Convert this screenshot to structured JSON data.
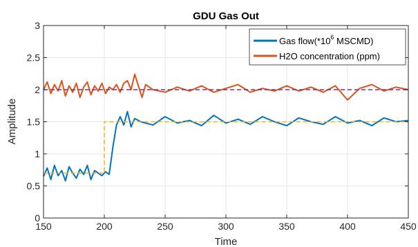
{
  "chart_data": {
    "type": "line",
    "title": "GDU Gas Out",
    "xlabel": "Time",
    "ylabel": "Amplitude",
    "xlim": [
      150,
      450
    ],
    "ylim": [
      0,
      3
    ],
    "x_ticks": [
      "150",
      "200",
      "250",
      "300",
      "350",
      "400",
      "450"
    ],
    "y_ticks": [
      "0",
      "0.5",
      "1",
      "1.5",
      "2",
      "2.5",
      "3"
    ],
    "grid": true,
    "legend_position": "top-right",
    "legend": {
      "gas_flow_prefix": "Gas flow(*10",
      "gas_flow_sup": "6",
      "gas_flow_suffix": " MSCMD)",
      "h2o": "H2O concentration (ppm)"
    },
    "series": [
      {
        "name": "Gas flow(*10^6 MSCMD)",
        "color": "#0072BD",
        "style": "solid",
        "x": [
          150,
          153,
          156,
          159,
          162,
          165,
          168,
          171,
          174,
          177,
          180,
          183,
          186,
          189,
          192,
          195,
          198,
          201,
          204,
          207,
          210,
          213,
          216,
          219,
          222,
          225,
          230,
          240,
          250,
          260,
          270,
          280,
          290,
          300,
          310,
          320,
          330,
          340,
          350,
          360,
          370,
          380,
          390,
          400,
          410,
          420,
          430,
          440,
          450
        ],
        "values": [
          0.65,
          0.78,
          0.6,
          0.82,
          0.66,
          0.74,
          0.58,
          0.8,
          0.7,
          0.62,
          0.76,
          0.68,
          0.82,
          0.6,
          0.74,
          0.7,
          0.66,
          0.72,
          0.68,
          1.1,
          1.45,
          1.58,
          1.45,
          1.66,
          1.42,
          1.55,
          1.5,
          1.45,
          1.58,
          1.48,
          1.52,
          1.44,
          1.6,
          1.48,
          1.54,
          1.46,
          1.58,
          1.5,
          1.44,
          1.56,
          1.5,
          1.46,
          1.58,
          1.48,
          1.52,
          1.44,
          1.56,
          1.5,
          1.52
        ]
      },
      {
        "name": "H2O concentration (ppm)",
        "color": "#D95319",
        "style": "solid",
        "x": [
          150,
          153,
          156,
          159,
          162,
          165,
          168,
          171,
          174,
          177,
          180,
          183,
          186,
          189,
          192,
          195,
          198,
          201,
          204,
          207,
          210,
          213,
          216,
          219,
          222,
          225,
          228,
          231,
          234,
          240,
          250,
          260,
          270,
          280,
          290,
          300,
          310,
          320,
          330,
          340,
          350,
          360,
          370,
          380,
          390,
          400,
          410,
          420,
          430,
          440,
          450
        ],
        "values": [
          2.0,
          2.12,
          1.94,
          2.08,
          1.98,
          2.14,
          1.9,
          2.06,
          1.96,
          2.1,
          1.88,
          2.04,
          2.12,
          1.92,
          2.06,
          1.98,
          2.1,
          1.94,
          2.04,
          2.0,
          2.08,
          1.96,
          2.1,
          2.14,
          2.0,
          2.24,
          2.06,
          1.88,
          2.08,
          2.0,
          1.96,
          2.04,
          1.98,
          2.06,
          1.96,
          2.02,
          2.08,
          1.96,
          2.02,
          1.98,
          2.06,
          1.98,
          2.04,
          1.96,
          2.06,
          1.84,
          2.02,
          2.08,
          1.98,
          2.04,
          2.0
        ]
      },
      {
        "name": "",
        "color": "#EDB120",
        "style": "dashed",
        "x": [
          150,
          200,
          200,
          450
        ],
        "values": [
          0.7,
          0.7,
          1.5,
          1.5
        ]
      },
      {
        "name": "",
        "color": "#7E2F8E",
        "style": "dashed",
        "x": [
          150,
          450
        ],
        "values": [
          2.0,
          2.0
        ]
      }
    ]
  }
}
